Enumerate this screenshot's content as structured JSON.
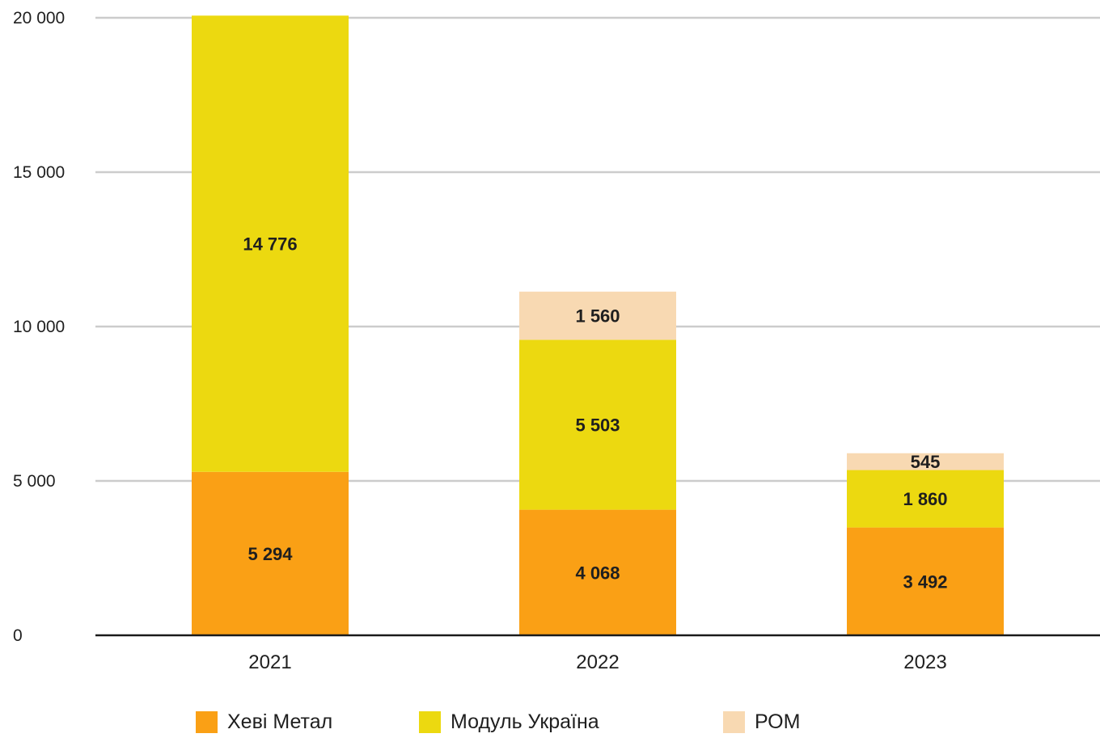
{
  "chart_data": {
    "type": "bar",
    "stacked": true,
    "categories": [
      "2021",
      "2022",
      "2023"
    ],
    "series": [
      {
        "name": "Хеві Метал",
        "values": [
          5294,
          4068,
          3492
        ],
        "color": "#FAA015"
      },
      {
        "name": "Модуль Україна",
        "values": [
          14776,
          5503,
          1860
        ],
        "color": "#ECD910"
      },
      {
        "name": "РОМ",
        "values": [
          0,
          1560,
          545
        ],
        "color": "#F8D9B2"
      }
    ],
    "data_labels": [
      [
        "5 294",
        "4 068",
        "3 492"
      ],
      [
        "14 776",
        "5 503",
        "1 860"
      ],
      [
        "",
        "1 560",
        "545"
      ]
    ],
    "ylim": [
      0,
      20000
    ],
    "yticks": [
      0,
      5000,
      10000,
      15000,
      20000
    ],
    "ytick_labels": [
      "0",
      "5 000",
      "10 000",
      "15 000",
      "20 000"
    ],
    "grid": true,
    "legend_position": "bottom",
    "title": "",
    "xlabel": "",
    "ylabel": ""
  }
}
